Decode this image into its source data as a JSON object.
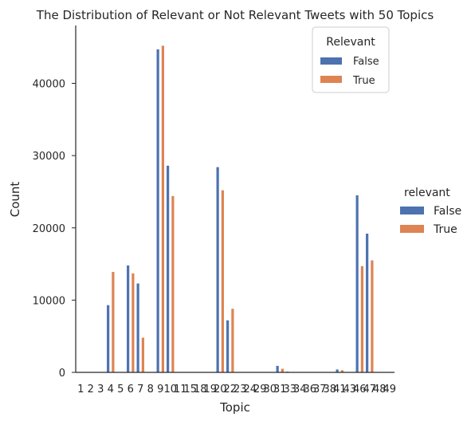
{
  "chart_data": {
    "type": "bar",
    "title": "The Distribution of Relevant or Not Relevant Tweets with 50 Topics",
    "xlabel": "Topic",
    "ylabel": "Count",
    "ylim": [
      0,
      48000
    ],
    "yticks": [
      0,
      10000,
      20000,
      30000,
      40000
    ],
    "grid": false,
    "categories": [
      "1",
      "2",
      "3",
      "4",
      "5",
      "6",
      "7",
      "8",
      "9",
      "10",
      "11",
      "15",
      "18",
      "19",
      "20",
      "22",
      "23",
      "24",
      "29",
      "30",
      "31",
      "33",
      "34",
      "36",
      "37",
      "38",
      "41",
      "43",
      "46",
      "47",
      "48",
      "49"
    ],
    "series": [
      {
        "name": "False",
        "color": "#4c72b0",
        "values": [
          0,
          0,
          0,
          9300,
          0,
          14800,
          12300,
          0,
          44700,
          28600,
          0,
          0,
          0,
          0,
          28400,
          7200,
          0,
          0,
          0,
          0,
          900,
          100,
          0,
          0,
          0,
          0,
          400,
          0,
          24500,
          19200,
          0,
          0
        ]
      },
      {
        "name": "True",
        "color": "#dd8452",
        "values": [
          0,
          0,
          0,
          13900,
          0,
          13700,
          4800,
          0,
          45200,
          24400,
          0,
          0,
          0,
          0,
          25200,
          8800,
          0,
          0,
          0,
          0,
          500,
          0,
          0,
          0,
          0,
          0,
          300,
          0,
          14700,
          15500,
          0,
          0
        ]
      }
    ],
    "legend_inner": {
      "title": "Relevant",
      "position": "top-right",
      "entries": [
        "False",
        "True"
      ]
    },
    "legend_outer": {
      "title": "relevant",
      "position": "outside-right",
      "entries": [
        "False",
        "True"
      ]
    }
  }
}
